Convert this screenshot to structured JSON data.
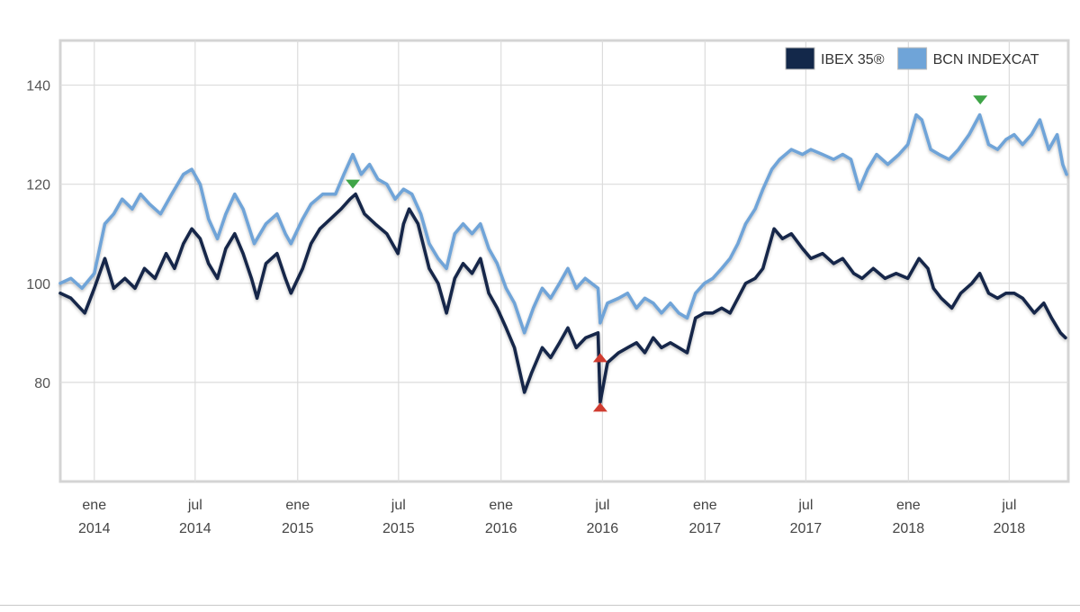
{
  "chart_data": {
    "type": "line",
    "title": "",
    "xlabel": "",
    "ylabel": "",
    "x_range": [
      "2013-11-01",
      "2018-10-15"
    ],
    "ylim": [
      60,
      149
    ],
    "y_ticks": [
      80,
      100,
      120,
      140
    ],
    "x_ticks": [
      {
        "date": "2014-01-01",
        "month": "ene",
        "year": "2014"
      },
      {
        "date": "2014-07-01",
        "month": "jul",
        "year": "2014"
      },
      {
        "date": "2015-01-01",
        "month": "ene",
        "year": "2015"
      },
      {
        "date": "2015-07-01",
        "month": "jul",
        "year": "2015"
      },
      {
        "date": "2016-01-01",
        "month": "ene",
        "year": "2016"
      },
      {
        "date": "2016-07-01",
        "month": "jul",
        "year": "2016"
      },
      {
        "date": "2017-01-01",
        "month": "ene",
        "year": "2017"
      },
      {
        "date": "2017-07-01",
        "month": "jul",
        "year": "2017"
      },
      {
        "date": "2018-01-01",
        "month": "ene",
        "year": "2018"
      },
      {
        "date": "2018-07-01",
        "month": "jul",
        "year": "2018"
      }
    ],
    "grid": true,
    "legend_position": "top-right",
    "series": [
      {
        "name": "IBEX 35®",
        "color": "#13284a",
        "points": [
          [
            "2013-11-01",
            98
          ],
          [
            "2013-11-20",
            97
          ],
          [
            "2013-12-15",
            94
          ],
          [
            "2014-01-01",
            99
          ],
          [
            "2014-01-20",
            105
          ],
          [
            "2014-02-05",
            99
          ],
          [
            "2014-02-25",
            101
          ],
          [
            "2014-03-15",
            99
          ],
          [
            "2014-04-01",
            103
          ],
          [
            "2014-04-20",
            101
          ],
          [
            "2014-05-10",
            106
          ],
          [
            "2014-05-25",
            103
          ],
          [
            "2014-06-10",
            108
          ],
          [
            "2014-06-25",
            111
          ],
          [
            "2014-07-10",
            109
          ],
          [
            "2014-07-25",
            104
          ],
          [
            "2014-08-10",
            101
          ],
          [
            "2014-08-25",
            107
          ],
          [
            "2014-09-10",
            110
          ],
          [
            "2014-09-25",
            106
          ],
          [
            "2014-10-10",
            101
          ],
          [
            "2014-10-20",
            97
          ],
          [
            "2014-11-05",
            104
          ],
          [
            "2014-11-25",
            106
          ],
          [
            "2014-12-10",
            101
          ],
          [
            "2014-12-20",
            98
          ],
          [
            "2015-01-10",
            103
          ],
          [
            "2015-01-25",
            108
          ],
          [
            "2015-02-10",
            111
          ],
          [
            "2015-03-01",
            113
          ],
          [
            "2015-03-20",
            115
          ],
          [
            "2015-04-05",
            117
          ],
          [
            "2015-04-15",
            118
          ],
          [
            "2015-05-01",
            114
          ],
          [
            "2015-05-20",
            112
          ],
          [
            "2015-06-10",
            110
          ],
          [
            "2015-06-30",
            106
          ],
          [
            "2015-07-10",
            112
          ],
          [
            "2015-07-20",
            115
          ],
          [
            "2015-08-05",
            112
          ],
          [
            "2015-08-25",
            103
          ],
          [
            "2015-09-10",
            100
          ],
          [
            "2015-09-25",
            94
          ],
          [
            "2015-10-10",
            101
          ],
          [
            "2015-10-25",
            104
          ],
          [
            "2015-11-10",
            102
          ],
          [
            "2015-11-25",
            105
          ],
          [
            "2015-12-10",
            98
          ],
          [
            "2015-12-25",
            95
          ],
          [
            "2016-01-10",
            91
          ],
          [
            "2016-01-25",
            87
          ],
          [
            "2016-02-12",
            78
          ],
          [
            "2016-02-25",
            82
          ],
          [
            "2016-03-15",
            87
          ],
          [
            "2016-03-30",
            85
          ],
          [
            "2016-04-15",
            88
          ],
          [
            "2016-04-30",
            91
          ],
          [
            "2016-05-15",
            87
          ],
          [
            "2016-06-01",
            89
          ],
          [
            "2016-06-23",
            90
          ],
          [
            "2016-06-27",
            76
          ],
          [
            "2016-07-10",
            84
          ],
          [
            "2016-07-30",
            86
          ],
          [
            "2016-08-15",
            87
          ],
          [
            "2016-08-31",
            88
          ],
          [
            "2016-09-15",
            86
          ],
          [
            "2016-09-30",
            89
          ],
          [
            "2016-10-15",
            87
          ],
          [
            "2016-10-31",
            88
          ],
          [
            "2016-11-15",
            87
          ],
          [
            "2016-11-30",
            86
          ],
          [
            "2016-12-15",
            93
          ],
          [
            "2016-12-31",
            94
          ],
          [
            "2017-01-15",
            94
          ],
          [
            "2017-01-31",
            95
          ],
          [
            "2017-02-15",
            94
          ],
          [
            "2017-03-01",
            97
          ],
          [
            "2017-03-15",
            100
          ],
          [
            "2017-04-01",
            101
          ],
          [
            "2017-04-15",
            103
          ],
          [
            "2017-05-05",
            111
          ],
          [
            "2017-05-20",
            109
          ],
          [
            "2017-06-05",
            110
          ],
          [
            "2017-06-25",
            107
          ],
          [
            "2017-07-10",
            105
          ],
          [
            "2017-07-31",
            106
          ],
          [
            "2017-08-20",
            104
          ],
          [
            "2017-09-05",
            105
          ],
          [
            "2017-09-25",
            102
          ],
          [
            "2017-10-10",
            101
          ],
          [
            "2017-10-30",
            103
          ],
          [
            "2017-11-20",
            101
          ],
          [
            "2017-12-10",
            102
          ],
          [
            "2017-12-31",
            101
          ],
          [
            "2018-01-20",
            105
          ],
          [
            "2018-02-05",
            103
          ],
          [
            "2018-02-15",
            99
          ],
          [
            "2018-03-01",
            97
          ],
          [
            "2018-03-20",
            95
          ],
          [
            "2018-04-05",
            98
          ],
          [
            "2018-04-25",
            100
          ],
          [
            "2018-05-09",
            102
          ],
          [
            "2018-05-25",
            98
          ],
          [
            "2018-06-10",
            97
          ],
          [
            "2018-06-25",
            98
          ],
          [
            "2018-07-10",
            98
          ],
          [
            "2018-07-25",
            97
          ],
          [
            "2018-08-15",
            94
          ],
          [
            "2018-09-01",
            96
          ],
          [
            "2018-09-15",
            93
          ],
          [
            "2018-10-01",
            90
          ],
          [
            "2018-10-10",
            89
          ]
        ]
      },
      {
        "name": "BCN INDEXCAT",
        "color": "#6fa4d8",
        "points": [
          [
            "2013-11-01",
            100
          ],
          [
            "2013-11-20",
            101
          ],
          [
            "2013-12-10",
            99
          ],
          [
            "2014-01-01",
            102
          ],
          [
            "2014-01-20",
            112
          ],
          [
            "2014-02-05",
            114
          ],
          [
            "2014-02-20",
            117
          ],
          [
            "2014-03-10",
            115
          ],
          [
            "2014-03-25",
            118
          ],
          [
            "2014-04-10",
            116
          ],
          [
            "2014-04-30",
            114
          ],
          [
            "2014-05-20",
            118
          ],
          [
            "2014-06-10",
            122
          ],
          [
            "2014-06-25",
            123
          ],
          [
            "2014-07-10",
            120
          ],
          [
            "2014-07-25",
            113
          ],
          [
            "2014-08-10",
            109
          ],
          [
            "2014-08-25",
            114
          ],
          [
            "2014-09-10",
            118
          ],
          [
            "2014-09-25",
            115
          ],
          [
            "2014-10-15",
            108
          ],
          [
            "2014-11-05",
            112
          ],
          [
            "2014-11-25",
            114
          ],
          [
            "2014-12-10",
            110
          ],
          [
            "2014-12-20",
            108
          ],
          [
            "2015-01-10",
            113
          ],
          [
            "2015-01-25",
            116
          ],
          [
            "2015-02-15",
            118
          ],
          [
            "2015-03-10",
            118
          ],
          [
            "2015-03-25",
            122
          ],
          [
            "2015-04-10",
            126
          ],
          [
            "2015-04-25",
            122
          ],
          [
            "2015-05-10",
            124
          ],
          [
            "2015-05-25",
            121
          ],
          [
            "2015-06-10",
            120
          ],
          [
            "2015-06-25",
            117
          ],
          [
            "2015-07-10",
            119
          ],
          [
            "2015-07-25",
            118
          ],
          [
            "2015-08-10",
            114
          ],
          [
            "2015-08-25",
            108
          ],
          [
            "2015-09-10",
            105
          ],
          [
            "2015-09-25",
            103
          ],
          [
            "2015-10-10",
            110
          ],
          [
            "2015-10-25",
            112
          ],
          [
            "2015-11-10",
            110
          ],
          [
            "2015-11-25",
            112
          ],
          [
            "2015-12-10",
            107
          ],
          [
            "2015-12-25",
            104
          ],
          [
            "2016-01-10",
            99
          ],
          [
            "2016-01-25",
            96
          ],
          [
            "2016-02-12",
            90
          ],
          [
            "2016-02-28",
            95
          ],
          [
            "2016-03-15",
            99
          ],
          [
            "2016-03-30",
            97
          ],
          [
            "2016-04-15",
            100
          ],
          [
            "2016-04-30",
            103
          ],
          [
            "2016-05-15",
            99
          ],
          [
            "2016-05-31",
            101
          ],
          [
            "2016-06-23",
            99
          ],
          [
            "2016-06-27",
            92
          ],
          [
            "2016-07-10",
            96
          ],
          [
            "2016-07-30",
            97
          ],
          [
            "2016-08-15",
            98
          ],
          [
            "2016-08-31",
            95
          ],
          [
            "2016-09-15",
            97
          ],
          [
            "2016-09-30",
            96
          ],
          [
            "2016-10-15",
            94
          ],
          [
            "2016-10-31",
            96
          ],
          [
            "2016-11-15",
            94
          ],
          [
            "2016-11-30",
            93
          ],
          [
            "2016-12-15",
            98
          ],
          [
            "2016-12-31",
            100
          ],
          [
            "2017-01-15",
            101
          ],
          [
            "2017-01-31",
            103
          ],
          [
            "2017-02-15",
            105
          ],
          [
            "2017-03-01",
            108
          ],
          [
            "2017-03-15",
            112
          ],
          [
            "2017-04-01",
            115
          ],
          [
            "2017-04-15",
            119
          ],
          [
            "2017-05-01",
            123
          ],
          [
            "2017-05-15",
            125
          ],
          [
            "2017-06-05",
            127
          ],
          [
            "2017-06-25",
            126
          ],
          [
            "2017-07-10",
            127
          ],
          [
            "2017-07-31",
            126
          ],
          [
            "2017-08-20",
            125
          ],
          [
            "2017-09-05",
            126
          ],
          [
            "2017-09-20",
            125
          ],
          [
            "2017-10-05",
            119
          ],
          [
            "2017-10-20",
            123
          ],
          [
            "2017-11-05",
            126
          ],
          [
            "2017-11-25",
            124
          ],
          [
            "2017-12-15",
            126
          ],
          [
            "2017-12-31",
            128
          ],
          [
            "2018-01-15",
            134
          ],
          [
            "2018-01-25",
            133
          ],
          [
            "2018-02-10",
            127
          ],
          [
            "2018-02-25",
            126
          ],
          [
            "2018-03-15",
            125
          ],
          [
            "2018-04-01",
            127
          ],
          [
            "2018-04-20",
            130
          ],
          [
            "2018-05-09",
            134
          ],
          [
            "2018-05-25",
            128
          ],
          [
            "2018-06-10",
            127
          ],
          [
            "2018-06-25",
            129
          ],
          [
            "2018-07-10",
            130
          ],
          [
            "2018-07-25",
            128
          ],
          [
            "2018-08-10",
            130
          ],
          [
            "2018-08-25",
            133
          ],
          [
            "2018-09-10",
            127
          ],
          [
            "2018-09-25",
            130
          ],
          [
            "2018-10-05",
            124
          ],
          [
            "2018-10-12",
            122
          ]
        ]
      }
    ],
    "markers": [
      {
        "series": "BCN INDEXCAT",
        "date": "2015-04-10",
        "value": 120,
        "kind": "max",
        "color": "#3fa447"
      },
      {
        "series": "BCN INDEXCAT",
        "date": "2018-05-10",
        "value": 137,
        "kind": "max",
        "color": "#3fa447"
      },
      {
        "series": "IBEX 35®",
        "date": "2016-06-27",
        "value": 85,
        "kind": "min",
        "color": "#d03c30"
      },
      {
        "series": "IBEX 35®",
        "date": "2016-06-27",
        "value": 75,
        "kind": "min",
        "color": "#d03c30"
      }
    ]
  }
}
